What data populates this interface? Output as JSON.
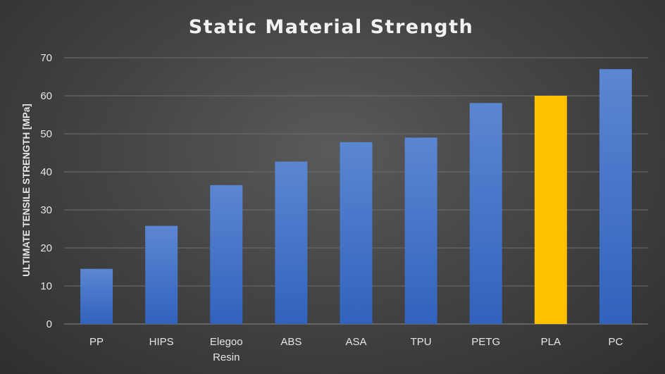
{
  "chart_data": {
    "type": "bar",
    "title": "Static Material Strength",
    "xlabel": "",
    "ylabel": "ULTIMATE TENSILE STRENGTH [MPa]",
    "ylim": [
      0,
      70
    ],
    "yticks": [
      0,
      10,
      20,
      30,
      40,
      50,
      60,
      70
    ],
    "grid": true,
    "legend": "none",
    "categories": [
      "PP",
      "HIPS",
      "Elegoo Resin",
      "ABS",
      "ASA",
      "TPU",
      "PETG",
      "PLA",
      "PC"
    ],
    "values": [
      14.5,
      25.8,
      36.5,
      42.7,
      47.8,
      49,
      58.1,
      60,
      67
    ],
    "colors": {
      "default_bar_top": "#5b86d2",
      "default_bar_bottom": "#3163bd",
      "highlight_bar": "#ffc000",
      "highlight_category": "PLA",
      "grid": "#6e6e6e",
      "text": "#e6e6e6",
      "title": "#f2f2f2"
    }
  }
}
